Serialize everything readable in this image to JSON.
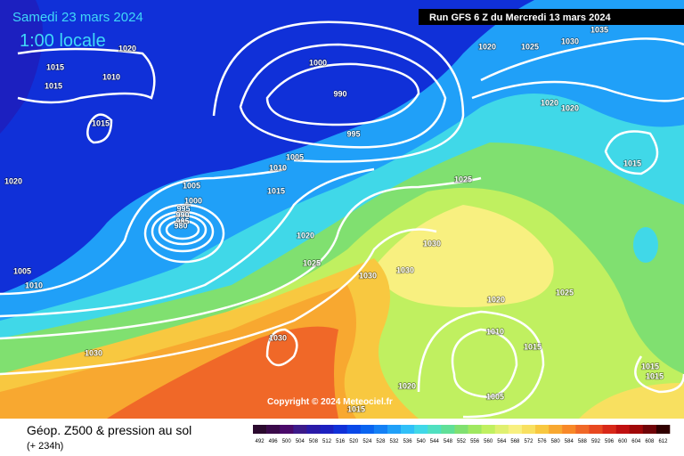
{
  "header": {
    "date": "Samedi 23 mars 2024",
    "time": "1:00 locale",
    "run": "Run GFS 6 Z du Mercredi 13 mars 2024"
  },
  "copyright": "Copyright © 2024 Meteociel.fr",
  "legend": {
    "title": "Géop. Z500 & pression au sol",
    "lead": "(+ 234h)",
    "ticks": [
      492,
      496,
      500,
      504,
      508,
      512,
      516,
      520,
      524,
      528,
      532,
      536,
      540,
      544,
      548,
      552,
      556,
      560,
      564,
      568,
      572,
      576,
      580,
      584,
      588,
      592,
      596,
      600,
      604,
      608,
      612
    ],
    "colors": [
      "#2b0a2e",
      "#3a0a4a",
      "#4a0a6a",
      "#3c1a8a",
      "#2a1aa8",
      "#1c20c0",
      "#1030d8",
      "#0a48e8",
      "#0a64f0",
      "#1480f5",
      "#20a0f8",
      "#30c0f8",
      "#40d8e8",
      "#50e0c0",
      "#60e098",
      "#80e070",
      "#a0e860",
      "#c0f060",
      "#e0f070",
      "#f8f080",
      "#f8e060",
      "#f8c840",
      "#f8a830",
      "#f88828",
      "#f06828",
      "#e84820",
      "#d82818",
      "#c01010",
      "#a00808",
      "#700408",
      "#300000"
    ]
  },
  "isobar_labels": [
    1015,
    1015,
    1010,
    1015,
    1020,
    1000,
    990,
    995,
    1005,
    1010,
    1015,
    1005,
    1000,
    995,
    990,
    985,
    980,
    1020,
    1025,
    1030,
    1030,
    1030,
    1025,
    1020,
    1025,
    1030,
    1035,
    1020,
    1020,
    1015,
    1025,
    1020,
    1010,
    1015,
    1005,
    1020,
    1015,
    1030,
    1030,
    1020,
    1005,
    1010,
    1015,
    1015
  ]
}
